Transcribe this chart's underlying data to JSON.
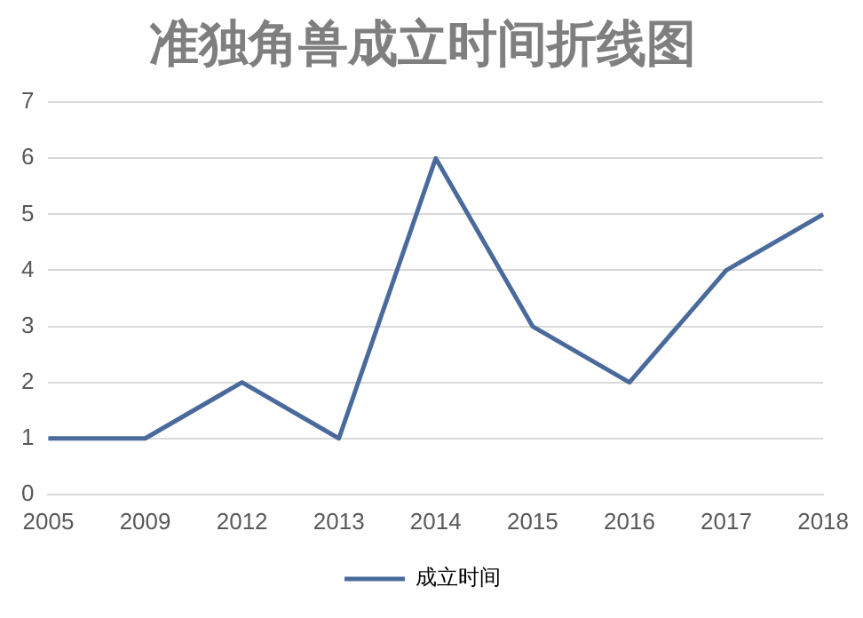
{
  "chart_data": {
    "type": "line",
    "title": "准独角兽成立时间折线图",
    "categories": [
      "2005",
      "2009",
      "2012",
      "2013",
      "2014",
      "2015",
      "2016",
      "2017",
      "2018"
    ],
    "series": [
      {
        "name": "成立时间",
        "color": "#4a6a9c",
        "values": [
          1,
          1,
          2,
          1,
          6,
          3,
          2,
          4,
          5
        ]
      }
    ],
    "ylim": [
      0,
      7
    ],
    "yticks": [
      0,
      1,
      2,
      3,
      4,
      5,
      6,
      7
    ],
    "grid": "y",
    "legend": "bottom",
    "marker": "none",
    "line_style": "solid"
  }
}
